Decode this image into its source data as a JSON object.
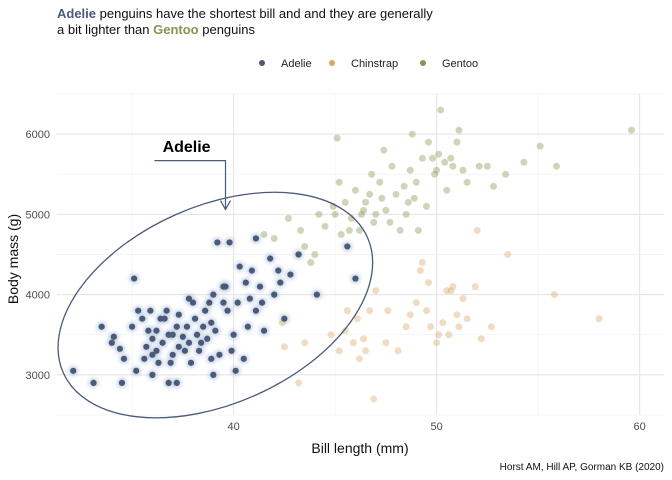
{
  "chart_data": {
    "type": "scatter",
    "subtitle_lines": [
      [
        {
          "text": "Adelie",
          "color_key": "Adelie"
        },
        {
          "text": " penguins have the shortest bill and and they are generally",
          "color_key": null
        }
      ],
      [
        {
          "text": "a bit lighter than ",
          "color_key": null
        },
        {
          "text": "Gentoo",
          "color_key": "Gentoo"
        },
        {
          "text": " penguins",
          "color_key": null
        }
      ]
    ],
    "xlabel": "Bill length (mm)",
    "ylabel": "Body mass (g)",
    "caption": "Horst AM, Hill AP, Gorman KB (2020)",
    "annotation": "Adelie",
    "legend_position": "top",
    "grid": true,
    "xlim": [
      31.3,
      61.2
    ],
    "ylim": [
      2500,
      6500
    ],
    "x_ticks": [
      40,
      50,
      60
    ],
    "y_ticks": [
      3000,
      4000,
      5000,
      6000
    ],
    "colors": {
      "Adelie": "#4a5a78",
      "Chinstrap": "#d9a866",
      "Gentoo": "#8a9350"
    },
    "ellipse": {
      "center": [
        39.1,
        3870
      ],
      "rx": 8.2,
      "ry": 1230,
      "rotation_deg": -24
    },
    "series": [
      {
        "name": "Adelie",
        "points": [
          [
            32.1,
            3050
          ],
          [
            33.1,
            2900
          ],
          [
            33.5,
            3600
          ],
          [
            34.0,
            3400
          ],
          [
            34.1,
            3475
          ],
          [
            34.4,
            3325
          ],
          [
            34.5,
            2900
          ],
          [
            34.6,
            3200
          ],
          [
            35.0,
            3600
          ],
          [
            35.1,
            4200
          ],
          [
            35.2,
            3050
          ],
          [
            35.3,
            3800
          ],
          [
            35.5,
            3700
          ],
          [
            35.6,
            3200
          ],
          [
            35.7,
            3350
          ],
          [
            35.9,
            3800
          ],
          [
            36.0,
            3450
          ],
          [
            36.0,
            3000
          ],
          [
            36.2,
            3550
          ],
          [
            36.2,
            3300
          ],
          [
            36.3,
            3150
          ],
          [
            36.4,
            3700
          ],
          [
            36.5,
            3400
          ],
          [
            36.6,
            3700
          ],
          [
            36.7,
            3800
          ],
          [
            36.8,
            3500
          ],
          [
            36.9,
            3150
          ],
          [
            37.0,
            3500
          ],
          [
            37.2,
            3600
          ],
          [
            37.3,
            3750
          ],
          [
            37.3,
            3350
          ],
          [
            37.5,
            3475
          ],
          [
            37.6,
            3300
          ],
          [
            37.7,
            3600
          ],
          [
            37.8,
            3400
          ],
          [
            37.9,
            3150
          ],
          [
            38.0,
            3900
          ],
          [
            38.1,
            3700
          ],
          [
            38.2,
            3500
          ],
          [
            38.3,
            3300
          ],
          [
            38.5,
            3600
          ],
          [
            38.6,
            3800
          ],
          [
            38.7,
            3450
          ],
          [
            38.8,
            3900
          ],
          [
            38.9,
            3650
          ],
          [
            39.0,
            4000
          ],
          [
            39.1,
            3550
          ],
          [
            39.2,
            4650
          ],
          [
            39.3,
            3250
          ],
          [
            39.5,
            3900
          ],
          [
            39.6,
            4100
          ],
          [
            39.7,
            3800
          ],
          [
            39.8,
            4650
          ],
          [
            40.0,
            3500
          ],
          [
            40.2,
            3900
          ],
          [
            40.3,
            4350
          ],
          [
            40.6,
            4150
          ],
          [
            40.8,
            3950
          ],
          [
            40.9,
            4300
          ],
          [
            41.1,
            4700
          ],
          [
            41.1,
            3800
          ],
          [
            41.3,
            4100
          ],
          [
            41.5,
            3550
          ],
          [
            41.8,
            4450
          ],
          [
            42.0,
            4000
          ],
          [
            42.2,
            4300
          ],
          [
            42.3,
            4150
          ],
          [
            42.5,
            3700
          ],
          [
            42.8,
            4250
          ],
          [
            43.2,
            4500
          ],
          [
            44.1,
            4000
          ],
          [
            45.6,
            4600
          ],
          [
            46.0,
            4200
          ],
          [
            37.8,
            3950
          ],
          [
            38.4,
            3400
          ],
          [
            39.9,
            3300
          ],
          [
            40.5,
            3200
          ],
          [
            39.0,
            3000
          ],
          [
            36.0,
            3250
          ],
          [
            37.0,
            3250
          ],
          [
            35.8,
            3550
          ],
          [
            38.9,
            3200
          ],
          [
            40.7,
            3600
          ],
          [
            41.4,
            3900
          ],
          [
            39.5,
            4100
          ],
          [
            37.2,
            2900
          ],
          [
            36.8,
            2900
          ],
          [
            40.1,
            3050
          ]
        ]
      },
      {
        "name": "Chinstrap",
        "points": [
          [
            42.4,
            3650
          ],
          [
            42.5,
            3350
          ],
          [
            43.2,
            2900
          ],
          [
            43.5,
            3400
          ],
          [
            44.8,
            3500
          ],
          [
            45.2,
            3300
          ],
          [
            45.5,
            3550
          ],
          [
            45.9,
            3400
          ],
          [
            46.1,
            3700
          ],
          [
            46.4,
            3450
          ],
          [
            46.7,
            3800
          ],
          [
            46.9,
            2700
          ],
          [
            47.0,
            4050
          ],
          [
            47.5,
            3400
          ],
          [
            48.1,
            3300
          ],
          [
            48.5,
            3600
          ],
          [
            49.0,
            3900
          ],
          [
            49.2,
            4300
          ],
          [
            49.5,
            3800
          ],
          [
            49.7,
            3600
          ],
          [
            50.0,
            3400
          ],
          [
            50.1,
            3500
          ],
          [
            50.3,
            3650
          ],
          [
            50.5,
            4050
          ],
          [
            50.8,
            4100
          ],
          [
            51.0,
            3750
          ],
          [
            51.3,
            3950
          ],
          [
            51.5,
            3700
          ],
          [
            51.9,
            4100
          ],
          [
            52.0,
            4800
          ],
          [
            52.2,
            3450
          ],
          [
            52.7,
            3600
          ],
          [
            53.5,
            4500
          ],
          [
            55.8,
            4000
          ],
          [
            58.0,
            3700
          ],
          [
            46.2,
            3200
          ],
          [
            49.3,
            4400
          ],
          [
            50.6,
            3500
          ],
          [
            45.6,
            3800
          ],
          [
            48.7,
            3750
          ],
          [
            51.1,
            3600
          ],
          [
            49.6,
            4150
          ],
          [
            47.6,
            3800
          ],
          [
            50.7,
            4050
          ],
          [
            46.5,
            3300
          ]
        ]
      },
      {
        "name": "Gentoo",
        "points": [
          [
            41.5,
            4750
          ],
          [
            42.0,
            4700
          ],
          [
            42.7,
            4950
          ],
          [
            43.3,
            4800
          ],
          [
            44.0,
            4500
          ],
          [
            44.5,
            4850
          ],
          [
            45.0,
            5000
          ],
          [
            45.1,
            5950
          ],
          [
            45.3,
            4750
          ],
          [
            45.5,
            5150
          ],
          [
            45.8,
            4950
          ],
          [
            46.0,
            5300
          ],
          [
            46.2,
            4800
          ],
          [
            46.4,
            5050
          ],
          [
            46.5,
            5150
          ],
          [
            46.8,
            5500
          ],
          [
            47.0,
            5000
          ],
          [
            47.2,
            5400
          ],
          [
            47.5,
            5050
          ],
          [
            47.7,
            4900
          ],
          [
            48.0,
            5250
          ],
          [
            48.2,
            4800
          ],
          [
            48.4,
            5350
          ],
          [
            48.7,
            5550
          ],
          [
            49.0,
            5400
          ],
          [
            49.1,
            4800
          ],
          [
            49.3,
            5700
          ],
          [
            49.5,
            5100
          ],
          [
            49.8,
            5700
          ],
          [
            50.0,
            5550
          ],
          [
            50.2,
            6300
          ],
          [
            50.4,
            5650
          ],
          [
            50.7,
            5700
          ],
          [
            51.0,
            5900
          ],
          [
            51.1,
            6050
          ],
          [
            51.5,
            5400
          ],
          [
            52.1,
            5600
          ],
          [
            52.5,
            5600
          ],
          [
            53.4,
            5500
          ],
          [
            54.3,
            5650
          ],
          [
            55.1,
            5850
          ],
          [
            55.9,
            5600
          ],
          [
            59.6,
            6050
          ],
          [
            43.5,
            4600
          ],
          [
            44.9,
            5100
          ],
          [
            46.7,
            5250
          ],
          [
            47.8,
            5600
          ],
          [
            48.6,
            5150
          ],
          [
            49.9,
            5500
          ],
          [
            50.5,
            5300
          ],
          [
            45.7,
            4800
          ],
          [
            46.3,
            5000
          ],
          [
            47.4,
            5800
          ],
          [
            48.8,
            6000
          ],
          [
            50.8,
            5600
          ],
          [
            43.8,
            4400
          ],
          [
            45.2,
            5400
          ],
          [
            46.9,
            4900
          ],
          [
            48.5,
            5000
          ],
          [
            49.6,
            5900
          ],
          [
            50.1,
            5750
          ],
          [
            51.3,
            5550
          ],
          [
            52.8,
            5350
          ],
          [
            44.2,
            5000
          ],
          [
            47.3,
            5200
          ],
          [
            48.9,
            5200
          ]
        ]
      }
    ]
  }
}
